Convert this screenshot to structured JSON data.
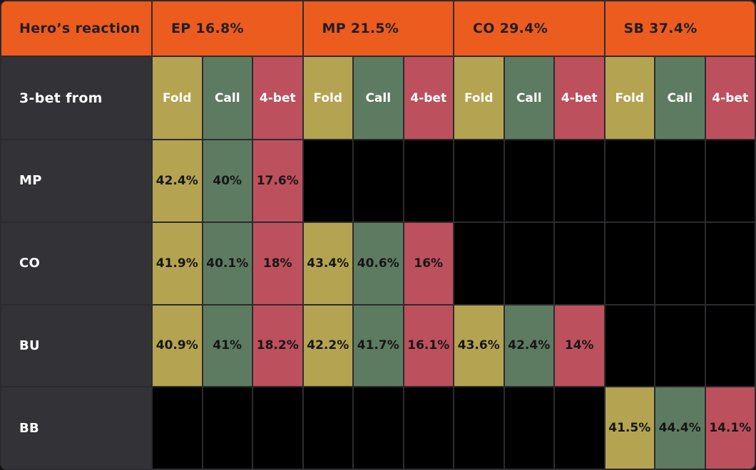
{
  "chart_data": {
    "type": "table",
    "title": "Hero’s reaction",
    "row_header": "3-bet from",
    "column_groups": [
      {
        "position": "EP",
        "open_range": "16.8%",
        "label": "EP 16.8%"
      },
      {
        "position": "MP",
        "open_range": "21.5%",
        "label": "MP 21.5%"
      },
      {
        "position": "CO",
        "open_range": "29.4%",
        "label": "CO 29.4%"
      },
      {
        "position": "SB",
        "open_range": "37.4%",
        "label": "SB 37.4%"
      }
    ],
    "actions": [
      "Fold",
      "Call",
      "4-bet"
    ],
    "rows": [
      {
        "three_bet_from": "MP",
        "EP": {
          "fold": "42.4%",
          "call": "40%",
          "four_bet": "17.6%"
        },
        "MP": null,
        "CO": null,
        "SB": null
      },
      {
        "three_bet_from": "CO",
        "EP": {
          "fold": "41.9%",
          "call": "40.1%",
          "four_bet": "18%"
        },
        "MP": {
          "fold": "43.4%",
          "call": "40.6%",
          "four_bet": "16%"
        },
        "CO": null,
        "SB": null
      },
      {
        "three_bet_from": "BU",
        "EP": {
          "fold": "40.9%",
          "call": "41%",
          "four_bet": "18.2%"
        },
        "MP": {
          "fold": "42.2%",
          "call": "41.7%",
          "four_bet": "16.1%"
        },
        "CO": {
          "fold": "43.6%",
          "call": "42.4%",
          "four_bet": "14%"
        },
        "SB": null
      },
      {
        "three_bet_from": "BB",
        "EP": null,
        "MP": null,
        "CO": null,
        "SB": {
          "fold": "41.5%",
          "call": "44.4%",
          "four_bet": "14.1%"
        }
      }
    ]
  },
  "colors": {
    "header_orange": "#ec5c1e",
    "label_dark": "#333237",
    "fold_yellow": "#b4a351",
    "call_green": "#5d7b60",
    "four_bet_red": "#bd505d",
    "empty_black": "#000000",
    "grid_line": "#2c2b2f",
    "value_text": "#161616"
  }
}
